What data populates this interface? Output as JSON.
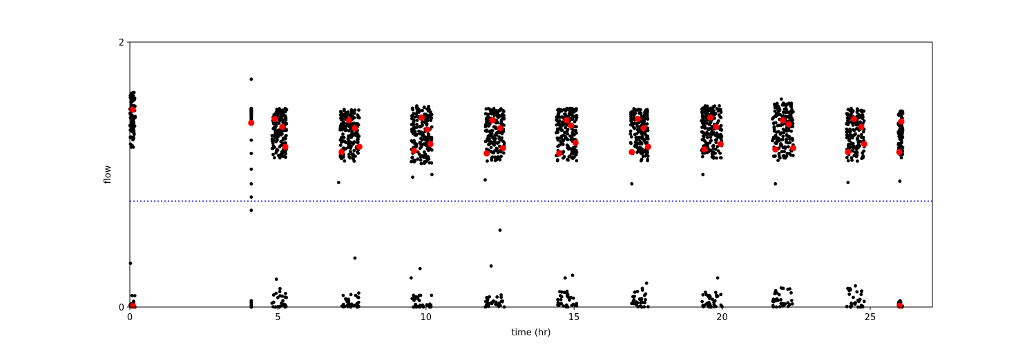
{
  "chart_data": {
    "type": "scatter",
    "title": "",
    "xlabel": "time (hr)",
    "ylabel": "flow",
    "xlim": [
      0,
      27.1
    ],
    "ylim": [
      0,
      2
    ],
    "xticks": [
      0,
      5,
      10,
      15,
      20,
      25
    ],
    "yticks": [
      0,
      2
    ],
    "grid": false,
    "legend": "none",
    "reference_line": {
      "y": 0.8,
      "style": "dotted",
      "color": "#0000ff"
    },
    "colors": {
      "raw": "#000000",
      "mean": "#ff0000"
    },
    "sessions": [
      {
        "x0": 0.0,
        "x1": 0.18,
        "center": 0.1,
        "hi": [
          1.2,
          1.62
        ],
        "lo": [
          0.0,
          0.1
        ],
        "means_hi": [
          {
            "x": 0.1,
            "y": 1.49
          }
        ],
        "means_lo": [
          {
            "x": 0.1,
            "y": 0.01
          }
        ]
      },
      {
        "x0": 4.1,
        "x1": 4.1,
        "center": 4.1,
        "hi": [
          1.38,
          1.5
        ],
        "lo": [
          0.0,
          0.05
        ],
        "means_hi": [
          {
            "x": 4.1,
            "y": 1.39
          }
        ],
        "means_lo": []
      },
      {
        "x0": 4.8,
        "x1": 5.3,
        "center": 5.05,
        "hi": [
          1.12,
          1.5
        ],
        "lo": [
          0.0,
          0.15
        ],
        "means_hi": [
          {
            "x": 4.9,
            "y": 1.42
          },
          {
            "x": 5.15,
            "y": 1.36
          },
          {
            "x": 5.25,
            "y": 1.21
          }
        ],
        "means_lo": []
      },
      {
        "x0": 7.1,
        "x1": 7.75,
        "center": 7.45,
        "hi": [
          1.1,
          1.5
        ],
        "lo": [
          0.0,
          0.12
        ],
        "means_hi": [
          {
            "x": 7.15,
            "y": 1.17
          },
          {
            "x": 7.4,
            "y": 1.41
          },
          {
            "x": 7.6,
            "y": 1.35
          },
          {
            "x": 7.75,
            "y": 1.21
          }
        ],
        "means_lo": []
      },
      {
        "x0": 9.5,
        "x1": 10.2,
        "center": 9.85,
        "hi": [
          1.08,
          1.52
        ],
        "lo": [
          0.0,
          0.12
        ],
        "means_hi": [
          {
            "x": 9.6,
            "y": 1.18
          },
          {
            "x": 9.85,
            "y": 1.43
          },
          {
            "x": 10.05,
            "y": 1.34
          },
          {
            "x": 10.15,
            "y": 1.23
          }
        ],
        "means_lo": []
      },
      {
        "x0": 12.0,
        "x1": 12.65,
        "center": 12.3,
        "hi": [
          1.1,
          1.5
        ],
        "lo": [
          0.0,
          0.1
        ],
        "means_hi": [
          {
            "x": 12.05,
            "y": 1.16
          },
          {
            "x": 12.25,
            "y": 1.41
          },
          {
            "x": 12.5,
            "y": 1.35
          },
          {
            "x": 12.6,
            "y": 1.2
          }
        ],
        "means_lo": []
      },
      {
        "x0": 14.4,
        "x1": 15.1,
        "center": 14.75,
        "hi": [
          1.1,
          1.5
        ],
        "lo": [
          0.0,
          0.12
        ],
        "means_hi": [
          {
            "x": 14.5,
            "y": 1.16
          },
          {
            "x": 14.75,
            "y": 1.41
          },
          {
            "x": 14.9,
            "y": 1.37
          },
          {
            "x": 15.05,
            "y": 1.24
          }
        ],
        "means_lo": []
      },
      {
        "x0": 16.9,
        "x1": 17.5,
        "center": 17.2,
        "hi": [
          1.1,
          1.5
        ],
        "lo": [
          0.0,
          0.15
        ],
        "means_hi": [
          {
            "x": 16.95,
            "y": 1.17
          },
          {
            "x": 17.15,
            "y": 1.42
          },
          {
            "x": 17.35,
            "y": 1.35
          },
          {
            "x": 17.5,
            "y": 1.21
          }
        ],
        "means_lo": []
      },
      {
        "x0": 19.3,
        "x1": 20.0,
        "center": 19.65,
        "hi": [
          1.12,
          1.52
        ],
        "lo": [
          0.0,
          0.12
        ],
        "means_hi": [
          {
            "x": 19.4,
            "y": 1.19
          },
          {
            "x": 19.6,
            "y": 1.43
          },
          {
            "x": 19.8,
            "y": 1.36
          },
          {
            "x": 19.95,
            "y": 1.23
          }
        ],
        "means_lo": []
      },
      {
        "x0": 21.7,
        "x1": 22.4,
        "center": 22.05,
        "hi": [
          1.1,
          1.54
        ],
        "lo": [
          0.0,
          0.15
        ],
        "means_hi": [
          {
            "x": 21.8,
            "y": 1.19
          },
          {
            "x": 22.05,
            "y": 1.41
          },
          {
            "x": 22.25,
            "y": 1.38
          },
          {
            "x": 22.4,
            "y": 1.2
          }
        ],
        "means_lo": []
      },
      {
        "x0": 24.2,
        "x1": 24.8,
        "center": 24.5,
        "hi": [
          1.1,
          1.5
        ],
        "lo": [
          0.0,
          0.15
        ],
        "means_hi": [
          {
            "x": 24.25,
            "y": 1.17
          },
          {
            "x": 24.45,
            "y": 1.42
          },
          {
            "x": 24.7,
            "y": 1.36
          },
          {
            "x": 24.8,
            "y": 1.23
          }
        ],
        "means_lo": []
      },
      {
        "x0": 25.95,
        "x1": 26.1,
        "center": 26.0,
        "hi": [
          1.12,
          1.48
        ],
        "lo": [
          0.0,
          0.1
        ],
        "means_hi": [
          {
            "x": 25.98,
            "y": 1.17
          },
          {
            "x": 26.05,
            "y": 1.4
          }
        ],
        "means_lo": [
          {
            "x": 26.0,
            "y": 0.01
          }
        ]
      }
    ],
    "outliers": [
      {
        "x": 0.02,
        "y": 1.23
      },
      {
        "x": 0.02,
        "y": 0.33
      },
      {
        "x": 4.1,
        "y": 1.72
      },
      {
        "x": 4.1,
        "y": 1.04
      },
      {
        "x": 4.1,
        "y": 0.93
      },
      {
        "x": 4.1,
        "y": 0.83
      },
      {
        "x": 4.1,
        "y": 0.73
      },
      {
        "x": 4.1,
        "y": 1.16
      },
      {
        "x": 4.1,
        "y": 1.26
      },
      {
        "x": 4.95,
        "y": 0.21
      },
      {
        "x": 7.05,
        "y": 0.94
      },
      {
        "x": 7.6,
        "y": 0.37
      },
      {
        "x": 9.55,
        "y": 0.98
      },
      {
        "x": 9.5,
        "y": 0.22
      },
      {
        "x": 9.8,
        "y": 0.29
      },
      {
        "x": 10.2,
        "y": 1.0
      },
      {
        "x": 12.0,
        "y": 0.96
      },
      {
        "x": 12.5,
        "y": 0.58
      },
      {
        "x": 12.2,
        "y": 0.31
      },
      {
        "x": 14.7,
        "y": 0.22
      },
      {
        "x": 14.95,
        "y": 0.24
      },
      {
        "x": 16.95,
        "y": 0.93
      },
      {
        "x": 17.45,
        "y": 0.18
      },
      {
        "x": 19.35,
        "y": 1.0
      },
      {
        "x": 19.85,
        "y": 0.22
      },
      {
        "x": 21.8,
        "y": 0.93
      },
      {
        "x": 22.0,
        "y": 1.57
      },
      {
        "x": 24.25,
        "y": 0.94
      },
      {
        "x": 24.5,
        "y": 0.16
      },
      {
        "x": 26.0,
        "y": 0.95
      }
    ]
  }
}
